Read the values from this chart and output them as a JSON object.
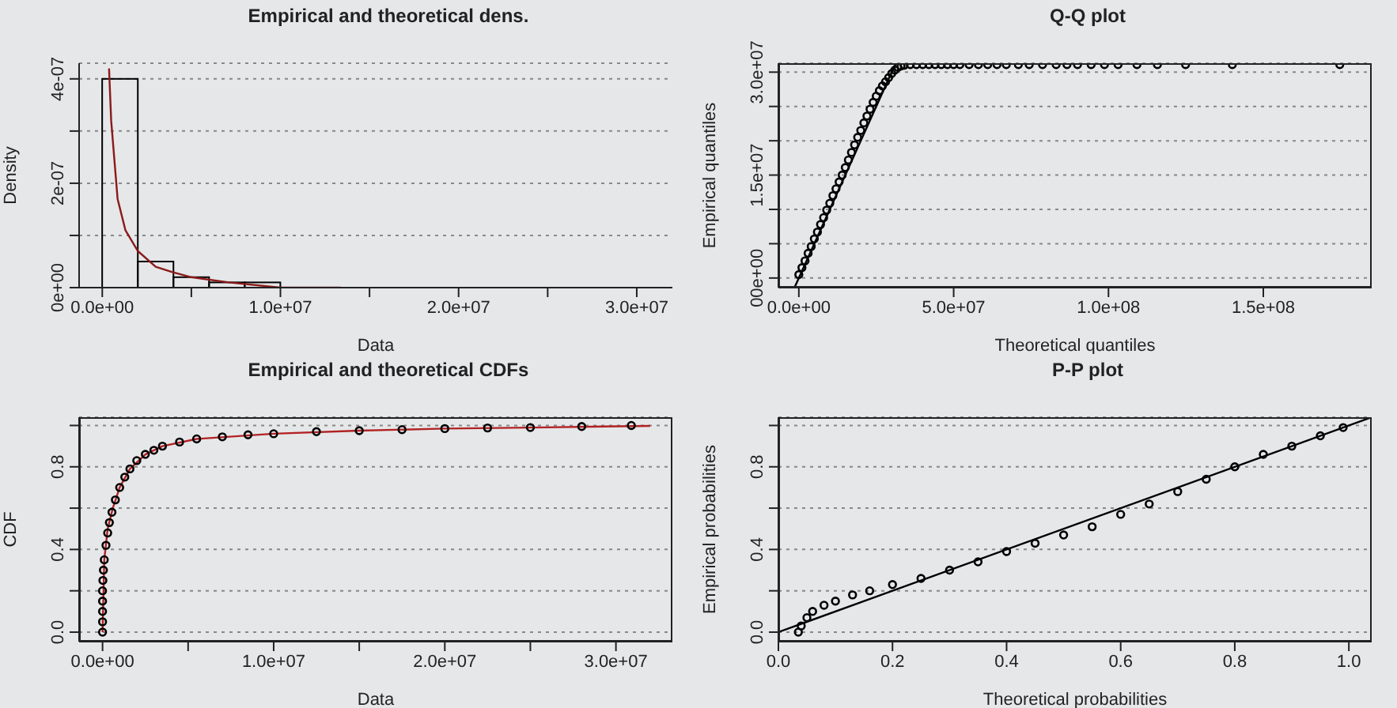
{
  "chart_data": [
    {
      "type": "histogram",
      "title": "Empirical and theoretical dens.",
      "xlabel": "Data",
      "ylabel": "Density",
      "color": "#000000",
      "bins": [
        0,
        2000000.0,
        4000000.0,
        6000000.0,
        8000000.0,
        10000000.0,
        12000000.0,
        14000000.0,
        16000000.0,
        18000000.0,
        20000000.0,
        22000000.0,
        24000000.0,
        26000000.0,
        28000000.0,
        30000000.0,
        32000000.0
      ],
      "values": [
        4e-07,
        5e-08,
        2e-08,
        1e-08,
        1e-08,
        0,
        0,
        0,
        0,
        0,
        0,
        0,
        0,
        0,
        0,
        0
      ],
      "series": [
        {
          "type": "line",
          "color": "#8b1a1a",
          "x": [
            380000.0,
            500000.0,
            860000.0,
            1300000.0,
            2000000.0,
            3000000.0,
            3900000.0,
            5000000.0,
            7100000.0,
            10000000.0,
            13400000.0
          ],
          "values": [
            4.2e-07,
            3.2e-07,
            1.7e-07,
            1.1e-07,
            7e-08,
            4e-08,
            3e-08,
            2e-08,
            1e-08,
            0,
            0
          ]
        }
      ],
      "xlim": [
        -1300000.0,
        32000000.0
      ],
      "ylim": [
        0,
        4.3e-07
      ],
      "xticks": [
        {
          "value": 0,
          "label": "0.0e+00"
        },
        {
          "value": 5000000.0,
          "label": null
        },
        {
          "value": 10000000.0,
          "label": "1.0e+07"
        },
        {
          "value": 15000000.0,
          "label": null
        },
        {
          "value": 20000000.0,
          "label": "2.0e+07"
        },
        {
          "value": 25000000.0,
          "label": null
        },
        {
          "value": 30000000.0,
          "label": "3.0e+07"
        }
      ],
      "yticks": [
        {
          "value": 0,
          "label": "0e+00"
        },
        {
          "value": 1e-07,
          "label": null
        },
        {
          "value": 2e-07,
          "label": "2e-07"
        },
        {
          "value": 3e-07,
          "label": null
        },
        {
          "value": 4e-07,
          "label": "4e-07"
        }
      ],
      "grid": "y"
    },
    {
      "type": "scatter",
      "title": "Q-Q plot",
      "xlabel": "Theoretical quantiles",
      "ylabel": "Empirical quantiles",
      "series": [
        {
          "type": "scatter",
          "marker": "circle",
          "color": "#000000",
          "x": [
            0,
            1000000.0,
            2000000.0,
            3000000.0,
            4000000.0,
            5000000.0,
            6000000.0,
            7000000.0,
            8000000.0,
            9000000.0,
            10000000.0,
            11000000.0,
            12000000.0,
            13000000.0,
            14000000.0,
            15000000.0,
            16000000.0,
            17000000.0,
            18000000.0,
            19000000.0,
            20000000.0,
            21000000.0,
            22000000.0,
            23000000.0,
            24000000.0,
            25000000.0,
            26000000.0,
            27000000.0,
            28000000.0,
            29000000.0,
            30000000.0,
            31000000.0,
            32000000.0,
            33000000.0,
            34000000.0,
            36000000.0,
            38000000.0,
            40000000.0,
            42000000.0,
            44000000.0,
            46000000.0,
            48000000.0,
            50000000.0,
            52000000.0,
            55000000.0,
            58000000.0,
            61000000.0,
            64000000.0,
            67000000.0,
            70900000.0,
            74400000.0,
            78700000.0,
            83100000.0,
            86600000.0,
            90000000.0,
            94400000.0,
            98700000.0,
            103100000.0,
            109200000.0,
            115800000.0,
            124900000.0,
            140000000.0,
            174700000.0
          ],
          "values": [
            500000.0,
            1500000.0,
            2500000.0,
            3600000.0,
            4600000.0,
            5700000.0,
            6700000.0,
            7800000.0,
            8800000.0,
            9900000.0,
            10900000.0,
            12000000.0,
            13000000.0,
            14000000.0,
            15000000.0,
            16100000.0,
            17200000.0,
            18300000.0,
            19400000.0,
            20500000.0,
            21500000.0,
            22600000.0,
            23600000.0,
            24600000.0,
            25600000.0,
            26500000.0,
            27300000.0,
            28000000.0,
            28600000.0,
            29200000.0,
            29800000.0,
            30300000.0,
            30700000.0,
            30900000.0,
            31000000.0,
            31100000.0,
            31100000.0,
            31100000.0,
            31100000.0,
            31100000.0,
            31100000.0,
            31100000.0,
            31100000.0,
            31100000.0,
            31100000.0,
            31100000.0,
            31100000.0,
            31100000.0,
            31100000.0,
            31100000.0,
            31100000.0,
            31100000.0,
            31100000.0,
            31100000.0,
            31100000.0,
            31100000.0,
            31100000.0,
            31100000.0,
            31100000.0,
            31100000.0,
            31100000.0,
            31100000.0,
            31100000.0
          ]
        },
        {
          "type": "line",
          "marker": "none",
          "color": "#000000",
          "x": [
            -1400000.0,
            31300000.0
          ],
          "values": [
            -1400000.0,
            31300000.0
          ]
        }
      ],
      "xlim": [
        -6600000.0,
        185000000.0
      ],
      "ylim": [
        -1400000.0,
        31300000.0
      ],
      "xticks": [
        {
          "value": 0,
          "label": "0.0e+00"
        },
        {
          "value": 50000000.0,
          "label": "5.0e+07"
        },
        {
          "value": 100000000.0,
          "label": "1.0e+08"
        },
        {
          "value": 150000000.0,
          "label": "1.5e+08"
        }
      ],
      "yticks": [
        {
          "value": 0,
          "label": "00e+00"
        },
        {
          "value": 5000000.0,
          "label": null
        },
        {
          "value": 10000000.0,
          "label": null
        },
        {
          "value": 15000000.0,
          "label": "1.5e+07"
        },
        {
          "value": 20000000.0,
          "label": null
        },
        {
          "value": 25000000.0,
          "label": null
        },
        {
          "value": 30000000.0,
          "label": "3.0e+07"
        }
      ],
      "grid": "y"
    },
    {
      "type": "scatter",
      "title": "Empirical and theoretical CDFs",
      "xlabel": "Data",
      "ylabel": "CDF",
      "series": [
        {
          "type": "scatter",
          "marker": "circle",
          "color": "#000000",
          "x": [
            0,
            0,
            0,
            0,
            0,
            20000.0,
            50000.0,
            100000.0,
            200000.0,
            300000.0,
            400000.0,
            550000.0,
            750000.0,
            1000000.0,
            1300000.0,
            1600000.0,
            2000000.0,
            2500000.0,
            3000000.0,
            3500000.0,
            4500000.0,
            5500000.0,
            7000000.0,
            8500000.0,
            10000000.0,
            12500000.0,
            15000000.0,
            17500000.0,
            20000000.0,
            22500000.0,
            25000000.0,
            28000000.0,
            30900000.0
          ],
          "values": [
            0,
            0.05,
            0.1,
            0.15,
            0.2,
            0.25,
            0.3,
            0.35,
            0.42,
            0.48,
            0.53,
            0.58,
            0.64,
            0.7,
            0.75,
            0.79,
            0.83,
            0.86,
            0.88,
            0.9,
            0.92,
            0.935,
            0.945,
            0.955,
            0.96,
            0.97,
            0.975,
            0.98,
            0.985,
            0.988,
            0.99,
            0.995,
            1.0
          ]
        },
        {
          "type": "line",
          "marker": "none",
          "color": "#b22222",
          "x": [
            0,
            100000.0,
            300000.0,
            600000.0,
            1000000.0,
            1600000.0,
            2500000.0,
            3500000.0,
            5500000.0,
            10000000.0,
            15000000.0,
            20000000.0,
            25000000.0,
            32000000.0
          ],
          "values": [
            0,
            0.35,
            0.5,
            0.6,
            0.7,
            0.79,
            0.86,
            0.9,
            0.935,
            0.96,
            0.975,
            0.985,
            0.99,
            0.998
          ]
        }
      ],
      "xlim": [
        -1370000.0,
        33300000.0
      ],
      "ylim": [
        -0.046,
        1.04
      ],
      "xticks": [
        {
          "value": 0,
          "label": "0.0e+00"
        },
        {
          "value": 5000000.0,
          "label": null
        },
        {
          "value": 10000000.0,
          "label": "1.0e+07"
        },
        {
          "value": 15000000.0,
          "label": null
        },
        {
          "value": 20000000.0,
          "label": "2.0e+07"
        },
        {
          "value": 25000000.0,
          "label": null
        },
        {
          "value": 30000000.0,
          "label": "3.0e+07"
        }
      ],
      "yticks": [
        {
          "value": 0,
          "label": "0.0"
        },
        {
          "value": 0.2,
          "label": null
        },
        {
          "value": 0.4,
          "label": "0.4"
        },
        {
          "value": 0.6,
          "label": null
        },
        {
          "value": 0.8,
          "label": "0.8"
        },
        {
          "value": 1,
          "label": null
        }
      ],
      "grid": "y"
    },
    {
      "type": "scatter",
      "title": "P-P plot",
      "xlabel": "Theoretical probabilities",
      "ylabel": "Empirical probabilities",
      "series": [
        {
          "type": "scatter",
          "marker": "circle",
          "color": "#000000",
          "x": [
            0.035,
            0.04,
            0.05,
            0.06,
            0.08,
            0.1,
            0.13,
            0.16,
            0.2,
            0.25,
            0.3,
            0.35,
            0.4,
            0.45,
            0.5,
            0.55,
            0.6,
            0.65,
            0.7,
            0.75,
            0.8,
            0.85,
            0.9,
            0.95,
            0.99
          ],
          "values": [
            0,
            0.03,
            0.07,
            0.1,
            0.13,
            0.15,
            0.18,
            0.2,
            0.23,
            0.26,
            0.3,
            0.34,
            0.39,
            0.43,
            0.47,
            0.51,
            0.57,
            0.62,
            0.68,
            0.74,
            0.8,
            0.86,
            0.9,
            0.95,
            0.99
          ]
        },
        {
          "type": "line",
          "marker": "none",
          "color": "#000000",
          "x": [
            0,
            1.04
          ],
          "values": [
            0,
            1.04
          ]
        }
      ],
      "xlim": [
        0,
        1.04
      ],
      "ylim": [
        -0.046,
        1.04
      ],
      "xticks": [
        {
          "value": 0,
          "label": "0.0"
        },
        {
          "value": 0.2,
          "label": "0.2"
        },
        {
          "value": 0.4,
          "label": "0.4"
        },
        {
          "value": 0.6,
          "label": "0.6"
        },
        {
          "value": 0.8,
          "label": "0.8"
        },
        {
          "value": 1,
          "label": "1.0"
        }
      ],
      "yticks": [
        {
          "value": 0,
          "label": "0.0"
        },
        {
          "value": 0.2,
          "label": null
        },
        {
          "value": 0.4,
          "label": "0.4"
        },
        {
          "value": 0.6,
          "label": null
        },
        {
          "value": 0.8,
          "label": "0.8"
        },
        {
          "value": 1,
          "label": null
        }
      ],
      "grid": "y"
    }
  ]
}
